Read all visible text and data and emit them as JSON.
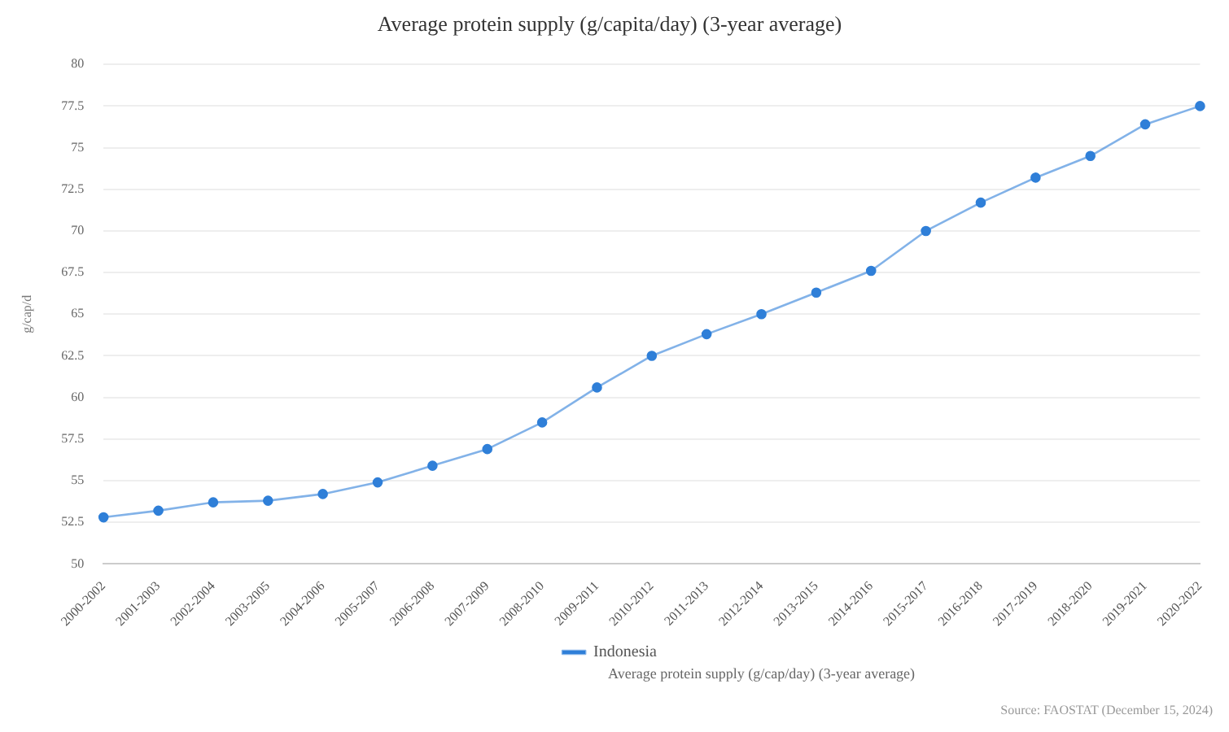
{
  "chart_data": {
    "type": "line",
    "title": "Average protein supply (g/capita/day) (3-year average)",
    "ylabel": "g/cap/d",
    "categories": [
      "2000-2002",
      "2001-2003",
      "2002-2004",
      "2003-2005",
      "2004-2006",
      "2005-2007",
      "2006-2008",
      "2007-2009",
      "2008-2010",
      "2009-2011",
      "2010-2012",
      "2011-2013",
      "2012-2014",
      "2013-2015",
      "2014-2016",
      "2015-2017",
      "2016-2018",
      "2017-2019",
      "2018-2020",
      "2019-2021",
      "2020-2022"
    ],
    "series": [
      {
        "name": "Indonesia",
        "color": "#2f7fd8",
        "values": [
          52.8,
          53.2,
          53.7,
          53.8,
          54.2,
          54.9,
          55.9,
          56.9,
          58.5,
          60.6,
          62.5,
          63.8,
          65.0,
          66.3,
          67.6,
          70.0,
          71.7,
          73.2,
          74.5,
          76.4,
          77.5
        ]
      }
    ],
    "ylim": [
      50,
      80
    ],
    "yticks": [
      50,
      52.5,
      55,
      57.5,
      60,
      62.5,
      65,
      67.5,
      70,
      72.5,
      75,
      77.5,
      80
    ],
    "grid": "y",
    "legend": "bottom",
    "marker": "circle",
    "line_style": "solid",
    "annotations": [
      "Average protein supply (g/cap/day) (3-year average)",
      "Source: FAOSTAT (December 15, 2024)"
    ]
  }
}
